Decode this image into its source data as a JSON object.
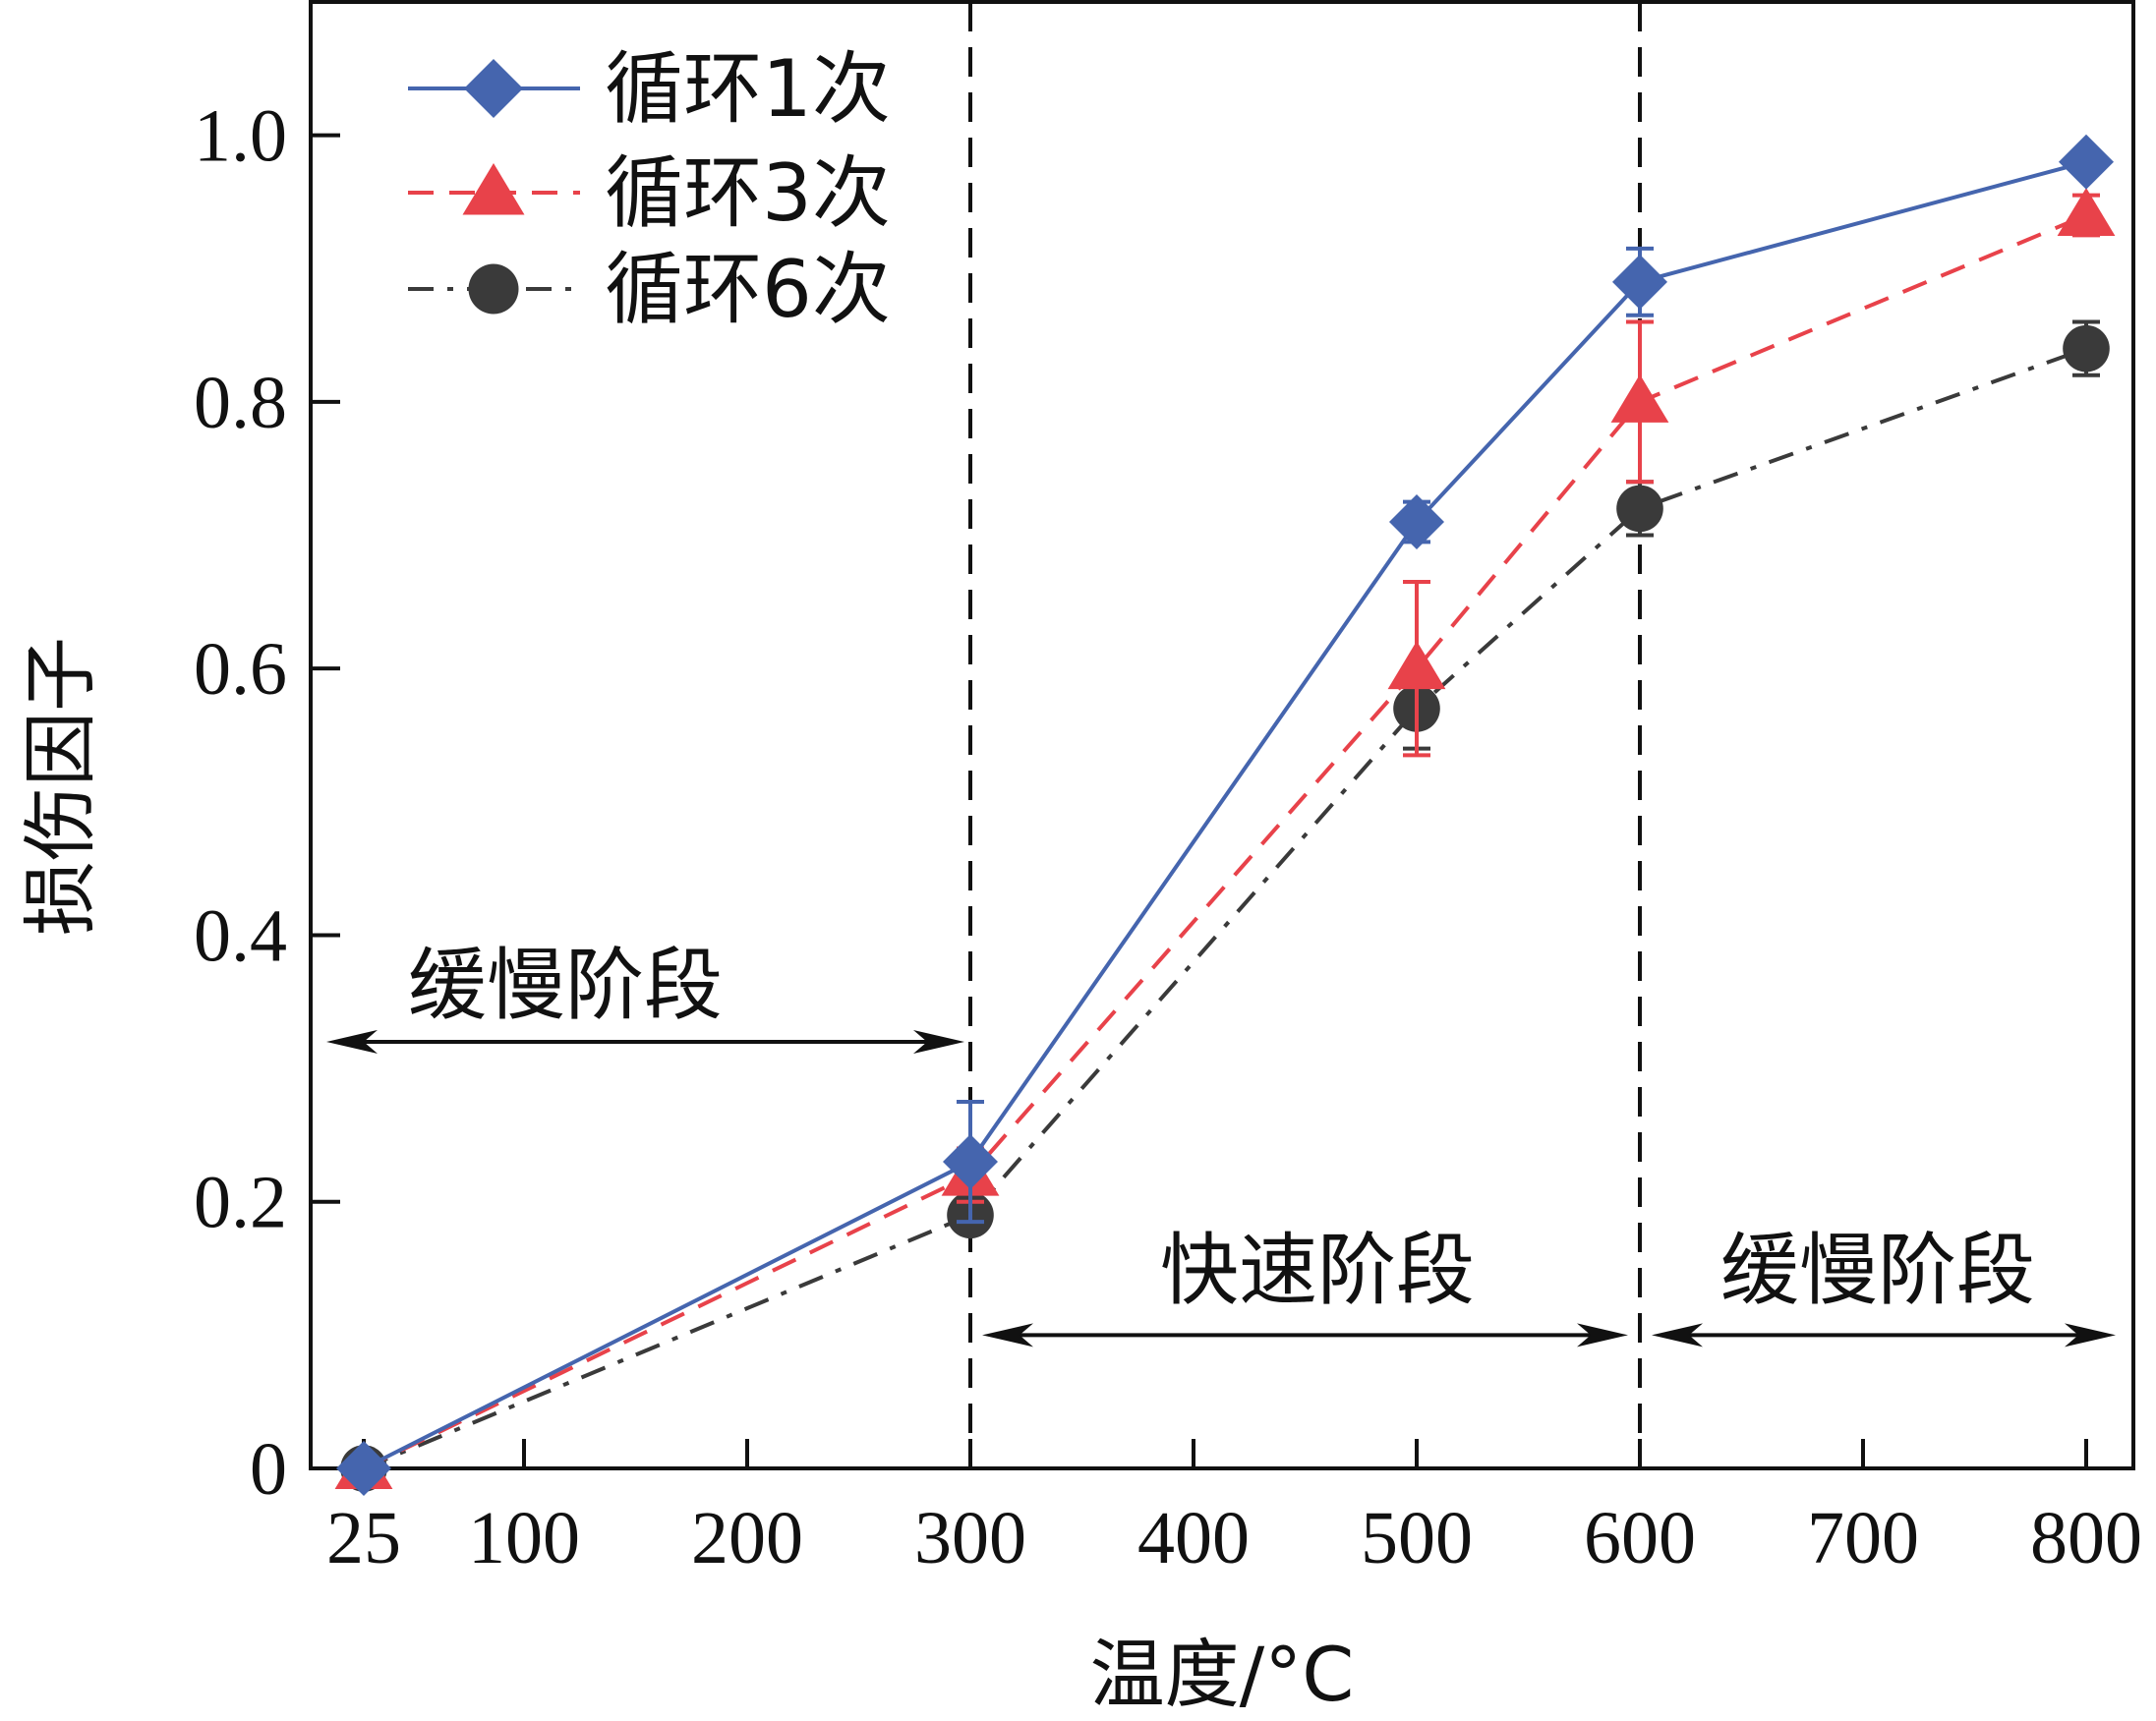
{
  "chart_data": {
    "type": "line",
    "xlabel": "温度/°C",
    "ylabel": "损伤因子",
    "x": [
      25,
      300,
      500,
      600,
      800
    ],
    "xticks": [
      25,
      100,
      200,
      300,
      400,
      500,
      600,
      700,
      800
    ],
    "xlim": [
      0,
      800
    ],
    "yticks": [
      0,
      0.2,
      0.4,
      0.6,
      0.8,
      1.0
    ],
    "ytick_labels": [
      "0",
      "0.2",
      "0.4",
      "0.6",
      "0.8",
      "1.0"
    ],
    "ylim": [
      0,
      1.1
    ],
    "grid": false,
    "legend_position": "top-left",
    "series": [
      {
        "name": "循环1次",
        "marker": "diamond",
        "line": "solid",
        "color": "#4565AE",
        "values": [
          0.0,
          0.23,
          0.71,
          0.89,
          0.98
        ],
        "errors": [
          0.0,
          0.045,
          0.015,
          0.025,
          0.0
        ]
      },
      {
        "name": "循环3次",
        "marker": "triangle",
        "line": "dashed",
        "color": "#E8424A",
        "values": [
          0.0,
          0.22,
          0.6,
          0.8,
          0.94
        ],
        "errors": [
          0.0,
          0.02,
          0.065,
          0.06,
          0.015
        ]
      },
      {
        "name": "循环6次",
        "marker": "circle",
        "line": "dashdot",
        "color": "#3A3A3A",
        "values": [
          0.0,
          0.19,
          0.57,
          0.72,
          0.84
        ],
        "errors": [
          0.0,
          0.01,
          0.03,
          0.02,
          0.02
        ]
      }
    ],
    "dividers": [
      300,
      600
    ],
    "annotations": [
      {
        "text": "缓慢阶段",
        "from": 0,
        "to": 300,
        "y": 0.32
      },
      {
        "text": "快速阶段",
        "from": 300,
        "to": 600,
        "y": 0.1
      },
      {
        "text": "缓慢阶段",
        "from": 600,
        "to": 800,
        "y": 0.1
      }
    ]
  }
}
